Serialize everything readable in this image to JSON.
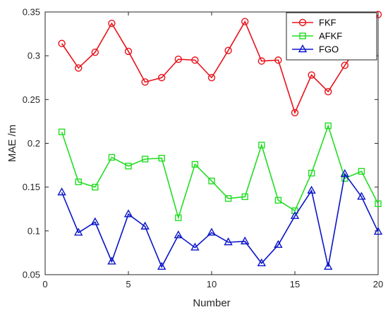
{
  "chart_data": {
    "type": "line",
    "xlabel": "Number",
    "ylabel": "MAE /m",
    "xlim": [
      0,
      20
    ],
    "ylim": [
      0.05,
      0.35
    ],
    "xticks": [
      0,
      5,
      10,
      15,
      20
    ],
    "yticks": [
      0.05,
      0.1,
      0.15,
      0.2,
      0.25,
      0.3,
      0.35
    ],
    "x": [
      1,
      2,
      3,
      4,
      5,
      6,
      7,
      8,
      9,
      10,
      11,
      12,
      13,
      14,
      15,
      16,
      17,
      18,
      19,
      20
    ],
    "grid": false,
    "legend_position": "top-right",
    "series": [
      {
        "name": "FKF",
        "color": "#e8121b",
        "marker": "circle",
        "values": [
          0.314,
          0.286,
          0.304,
          0.337,
          0.305,
          0.27,
          0.275,
          0.296,
          0.295,
          0.275,
          0.306,
          0.339,
          0.294,
          0.295,
          0.235,
          0.278,
          0.259,
          0.289,
          0.317,
          0.347
        ]
      },
      {
        "name": "AFKF",
        "color": "#22dd22",
        "marker": "square",
        "values": [
          0.213,
          0.156,
          0.15,
          0.184,
          0.174,
          0.182,
          0.183,
          0.115,
          0.176,
          0.157,
          0.137,
          0.139,
          0.198,
          0.135,
          0.123,
          0.166,
          0.22,
          0.16,
          0.168,
          0.131
        ]
      },
      {
        "name": "FGO",
        "color": "#0a14c8",
        "marker": "triangle",
        "values": [
          0.144,
          0.098,
          0.11,
          0.065,
          0.119,
          0.105,
          0.059,
          0.095,
          0.081,
          0.098,
          0.087,
          0.088,
          0.063,
          0.084,
          0.117,
          0.146,
          0.059,
          0.165,
          0.139,
          0.099
        ]
      }
    ]
  }
}
